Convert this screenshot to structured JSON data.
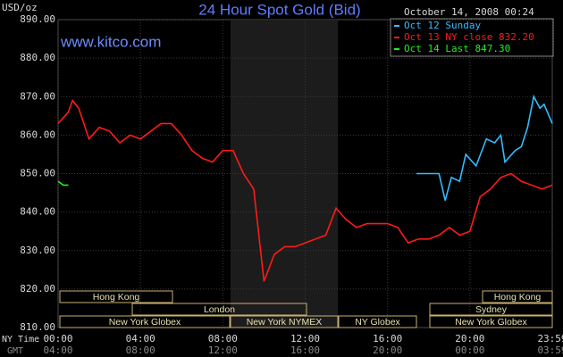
{
  "chart_data": {
    "type": "line",
    "title": "24 Hour Spot Gold (Bid)",
    "site": "www.kitco.com",
    "y_label": "USD/oz",
    "timestamp": "October 14, 2008 00:24",
    "x_label": "NY Time",
    "x2_label": "GMT",
    "xlim": [
      0,
      24
    ],
    "xticks": [
      {
        "value": 0,
        "label": "00:00"
      },
      {
        "value": 4,
        "label": "04:00"
      },
      {
        "value": 8,
        "label": "08:00"
      },
      {
        "value": 12,
        "label": "12:00"
      },
      {
        "value": 16,
        "label": "16:00"
      },
      {
        "value": 20,
        "label": "20:00"
      },
      {
        "value": 24,
        "label": "23:59"
      }
    ],
    "gmt_labels": [
      "04:00",
      "08:00",
      "12:00",
      "16:00",
      "20:00",
      "00:00",
      "03:59"
    ],
    "ylim": [
      810,
      890
    ],
    "yticks": [
      {
        "value": 810,
        "label": "810.00"
      },
      {
        "value": 820,
        "label": "820.00"
      },
      {
        "value": 830,
        "label": "830.00"
      },
      {
        "value": 840,
        "label": "840.00"
      },
      {
        "value": 850,
        "label": "850.00"
      },
      {
        "value": 860,
        "label": "860.00"
      },
      {
        "value": 870,
        "label": "870.00"
      },
      {
        "value": 880,
        "label": "880.00"
      },
      {
        "value": 890,
        "label": "890.00"
      }
    ],
    "grid": true,
    "series": [
      {
        "name": "Oct 12 Sunday",
        "color": "#33bbff",
        "x": [
          17.4,
          18.0,
          18.5,
          18.8,
          19.1,
          19.5,
          19.8,
          20.3,
          20.8,
          21.2,
          21.5,
          21.7,
          22.2,
          22.5,
          22.8,
          23.1,
          23.4,
          23.6,
          24
        ],
        "values": [
          850,
          850,
          850,
          843,
          849,
          848,
          855,
          852,
          859,
          858,
          860,
          853,
          856,
          857,
          862,
          870,
          867,
          868,
          863
        ]
      },
      {
        "name": "Oct 13 NY close 832.20",
        "color": "#ff1a1a",
        "x": [
          0,
          0.5,
          0.7,
          1,
          1.5,
          2,
          2.5,
          3,
          3.5,
          4,
          4.5,
          5,
          5.5,
          6,
          6.5,
          7,
          7.5,
          8,
          8.5,
          9,
          9.5,
          10,
          10.5,
          11,
          11.5,
          12,
          12.5,
          13,
          13.5,
          14,
          14.5,
          15,
          15.5,
          16,
          16.5,
          17,
          17.5,
          18,
          18.5,
          19,
          19.5,
          20,
          20.5,
          21,
          21.5,
          22,
          22.5,
          23,
          23.5,
          24
        ],
        "values": [
          863,
          866,
          869,
          867,
          859,
          862,
          861,
          858,
          860,
          859,
          861,
          863,
          863,
          860,
          856,
          854,
          853,
          856,
          856,
          850,
          846,
          822,
          829,
          831,
          831,
          832,
          833,
          834,
          841,
          838,
          836,
          837,
          837,
          837,
          836,
          832,
          833,
          833,
          834,
          836,
          834,
          835,
          844,
          846,
          849,
          850,
          848,
          847,
          846,
          847
        ]
      },
      {
        "name": "Oct 14 Last 847.30",
        "color": "#22ee22",
        "x": [
          0,
          0.25,
          0.5
        ],
        "values": [
          848,
          847,
          847
        ]
      }
    ],
    "sessions": [
      "Hong Kong",
      "London",
      "New York Globex",
      "New York NYMEX",
      "NY Globex",
      "Hong Kong",
      "Sydney",
      "New York Globex"
    ]
  }
}
